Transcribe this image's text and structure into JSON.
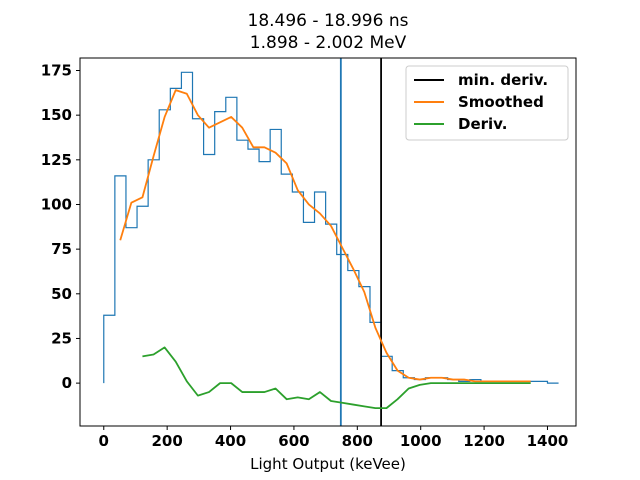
{
  "chart_data": {
    "type": "line",
    "title": "18.496 - 18.996 ns",
    "subtitle": "1.898 - 2.002 MeV",
    "xlabel": "Light Output (keVee)",
    "ylabel": "",
    "xlim": [
      -75,
      1490
    ],
    "ylim": [
      -24,
      182
    ],
    "xticks": [
      0,
      200,
      400,
      600,
      800,
      1000,
      1200,
      1400
    ],
    "yticks": [
      0,
      25,
      50,
      75,
      100,
      125,
      150,
      175
    ],
    "legend_position": "top-right",
    "histogram": {
      "color": "#1f77b4",
      "edges": [
        0,
        35,
        70,
        105,
        140,
        175,
        210,
        245,
        280,
        315,
        350,
        385,
        420,
        455,
        490,
        525,
        560,
        595,
        630,
        665,
        700,
        735,
        770,
        805,
        840,
        875,
        910,
        945,
        980,
        1015,
        1050,
        1085,
        1120,
        1155,
        1190,
        1225,
        1260,
        1295,
        1330,
        1365,
        1400,
        1435
      ],
      "counts": [
        38,
        116,
        87,
        99,
        125,
        153,
        165,
        174,
        148,
        128,
        152,
        160,
        136,
        131,
        124,
        142,
        117,
        107,
        90,
        107,
        89,
        72,
        63,
        54,
        34,
        15,
        7,
        3,
        2,
        3,
        3,
        2,
        1,
        2,
        1,
        1,
        1,
        1,
        1,
        1,
        0
      ]
    },
    "vertical_lines": [
      {
        "x": 748,
        "color": "#1f77b4"
      },
      {
        "x": 875,
        "color": "#000000"
      }
    ],
    "series": [
      {
        "name": "min. deriv.",
        "color": "#000000",
        "legend_only": true,
        "x": [],
        "y": []
      },
      {
        "name": "Smoothed",
        "color": "#ff7f0e",
        "x": [
          52,
          87,
          122,
          157,
          192,
          227,
          262,
          297,
          332,
          367,
          402,
          437,
          472,
          507,
          542,
          577,
          612,
          647,
          682,
          717,
          752,
          787,
          822,
          857,
          892,
          927,
          962,
          997,
          1032,
          1067,
          1102,
          1137,
          1172,
          1207,
          1242,
          1277,
          1312,
          1347
        ],
        "y": [
          80,
          101,
          104,
          127,
          149,
          164,
          162,
          150,
          143,
          146,
          149,
          143,
          132,
          132,
          129,
          123,
          108,
          100,
          95,
          88,
          76,
          64,
          51,
          31,
          17,
          7,
          3,
          2,
          3,
          3,
          2,
          2,
          1,
          1,
          1,
          1,
          1,
          1
        ]
      },
      {
        "name": "Deriv.",
        "color": "#2ca02c",
        "x": [
          122,
          157,
          192,
          227,
          262,
          297,
          332,
          367,
          402,
          437,
          472,
          507,
          542,
          577,
          612,
          647,
          682,
          717,
          752,
          787,
          822,
          857,
          892,
          927,
          962,
          997,
          1032,
          1067,
          1102,
          1137,
          1172,
          1207,
          1242,
          1277,
          1312,
          1347
        ],
        "y": [
          15,
          16,
          20,
          12,
          1,
          -7,
          -5,
          0,
          0,
          -5,
          -5,
          -5,
          -3,
          -9,
          -8,
          -9,
          -5,
          -10,
          -11,
          -12,
          -13,
          -14,
          -14,
          -9,
          -3,
          -1,
          0,
          0,
          0,
          0,
          0,
          0,
          0,
          0,
          0,
          0
        ]
      }
    ]
  }
}
